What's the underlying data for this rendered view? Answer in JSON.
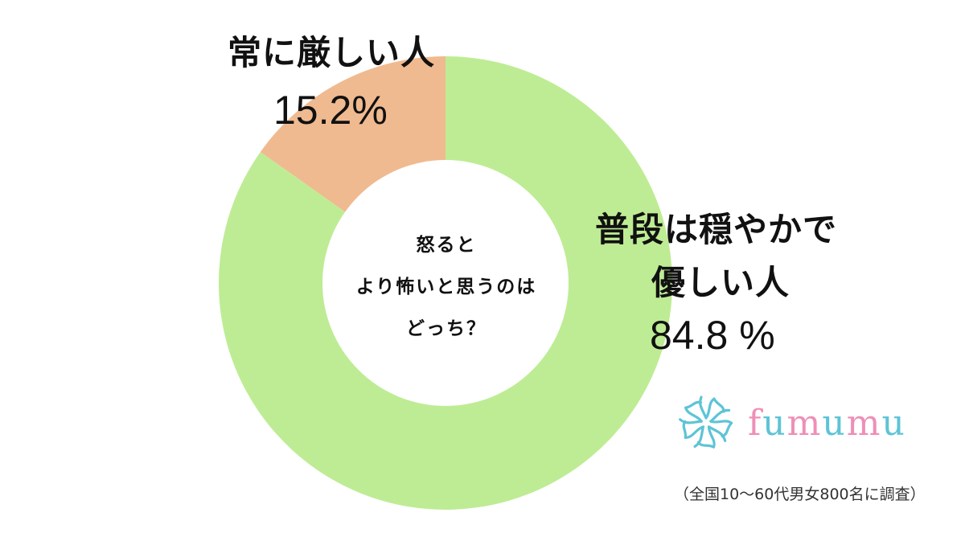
{
  "chart_data": {
    "type": "pie",
    "variant": "donut",
    "title": "怒るとより怖いと思うのはどっち？",
    "categories": [
      "常に厳しい人",
      "普段は穏やかで優しい人"
    ],
    "values": [
      15.2,
      84.8
    ],
    "unit": "%",
    "colors": [
      "#F0BA90",
      "#BEEC94"
    ],
    "start_angle_deg": 0,
    "direction": "clockwise",
    "center_text": [
      "怒ると",
      "より怖いと思うのは",
      "どっち？"
    ],
    "note": "（全国10〜60代男女800名に調査）"
  },
  "labels": {
    "strict_name": "常に厳しい人",
    "strict_pct": "15.2%",
    "gentle_name_line1": "普段は穏やかで",
    "gentle_name_line2": "優しい人",
    "gentle_pct": "84.8 %"
  },
  "center": {
    "line1": "怒ると",
    "line2": "より怖いと思うのは",
    "line3": "どっち？"
  },
  "logo": {
    "icon": "flower-icon",
    "text_parts": [
      "f",
      "u",
      "m",
      "u",
      "m",
      "u"
    ],
    "colors": {
      "pink": "#EE8FB6",
      "blue": "#5EC4D6"
    }
  },
  "footnote": "（全国10〜60代男女800名に調査）"
}
